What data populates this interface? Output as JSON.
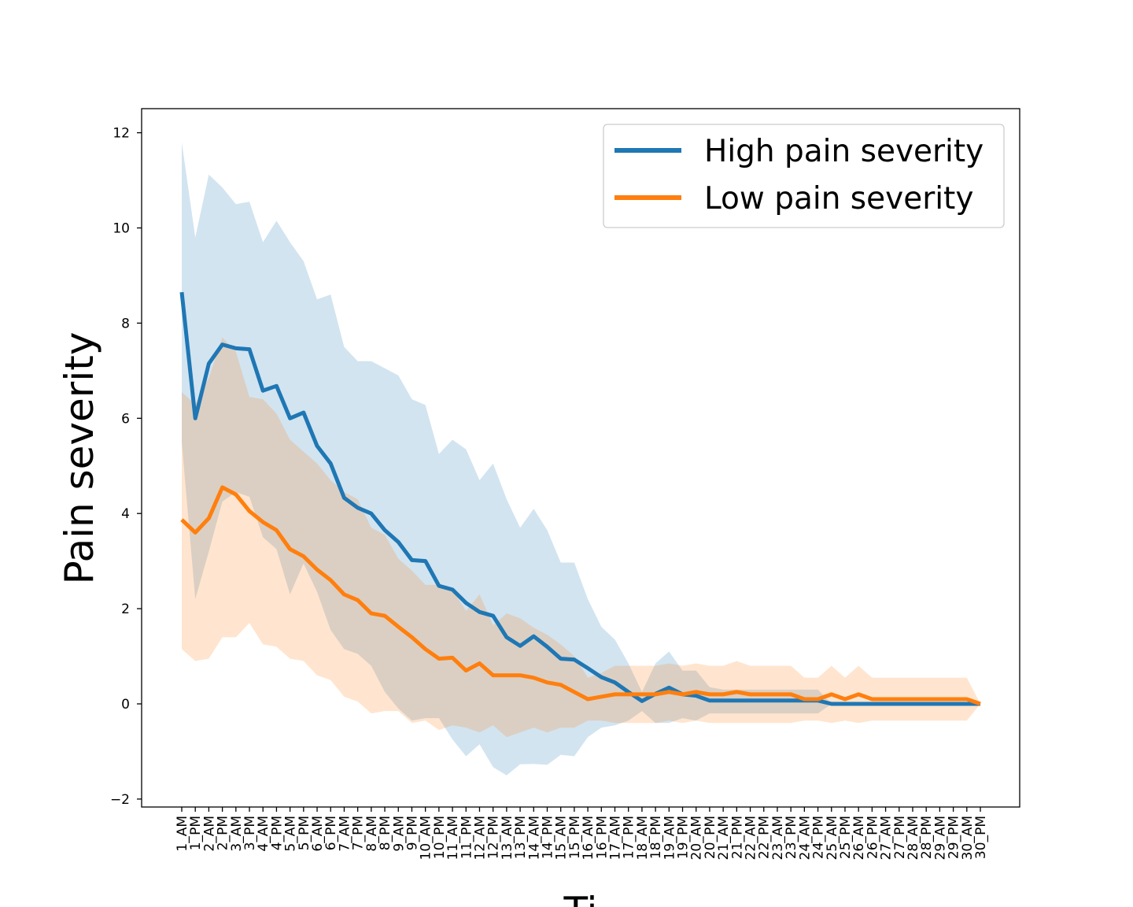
{
  "chart_data": {
    "type": "line",
    "title": "",
    "xlabel": "Ti",
    "ylabel": "Pain severity",
    "ylim": [
      -2.2,
      12.5
    ],
    "yticks": [
      -2,
      0,
      2,
      4,
      6,
      8,
      10,
      12
    ],
    "ytick_labels": [
      "−2",
      "0",
      "2",
      "4",
      "6",
      "8",
      "10",
      "12"
    ],
    "grid": false,
    "legend_position": "top-right",
    "categories": [
      "1_AM",
      "1_PM",
      "2_AM",
      "2_PM",
      "3_AM",
      "3_PM",
      "4_AM",
      "4_PM",
      "5_AM",
      "5_PM",
      "6_AM",
      "6_PM",
      "7_AM",
      "7_PM",
      "8_AM",
      "8_PM",
      "9_AM",
      "9_PM",
      "10_AM",
      "10_PM",
      "11_AM",
      "11_PM",
      "12_AM",
      "12_PM",
      "13_AM",
      "13_PM",
      "14_AM",
      "14_PM",
      "15_AM",
      "15_PM",
      "16_AM",
      "16_PM",
      "17_AM",
      "17_PM",
      "18_AM",
      "18_PM",
      "19_AM",
      "19_PM",
      "20_AM",
      "20_PM",
      "21_AM",
      "21_PM",
      "22_AM",
      "22_PM",
      "23_AM",
      "23_PM",
      "24_AM",
      "24_PM",
      "25_AM",
      "25_PM",
      "26_AM",
      "26_PM",
      "27_AM",
      "27_PM",
      "28_AM",
      "28_PM",
      "29_AM",
      "29_PM",
      "30_AM",
      "30_PM"
    ],
    "series": [
      {
        "name": "High pain severity",
        "color": "#1f77b4",
        "band_color": "#1f77b4",
        "values": [
          8.65,
          6.0,
          7.15,
          7.55,
          7.47,
          7.45,
          6.58,
          6.68,
          6.0,
          6.12,
          5.42,
          5.05,
          4.33,
          4.12,
          4.0,
          3.65,
          3.4,
          3.02,
          3.0,
          2.48,
          2.4,
          2.12,
          1.93,
          1.85,
          1.4,
          1.22,
          1.42,
          1.2,
          0.95,
          0.93,
          0.75,
          0.56,
          0.45,
          0.25,
          0.06,
          0.21,
          0.34,
          0.2,
          0.17,
          0.07,
          0.07,
          0.07,
          0.07,
          0.07,
          0.07,
          0.07,
          0.07,
          0.07,
          0.0,
          0.0,
          0.0,
          0.0,
          0.0,
          0.0,
          0.0,
          0.0,
          0.0,
          0.0,
          0.0,
          0.0
        ],
        "upper": [
          11.8,
          9.8,
          11.12,
          10.85,
          10.5,
          10.55,
          9.7,
          10.15,
          9.7,
          9.3,
          8.5,
          8.6,
          7.5,
          7.2,
          7.2,
          7.05,
          6.9,
          6.4,
          6.28,
          5.25,
          5.55,
          5.35,
          4.7,
          5.05,
          4.3,
          3.7,
          4.1,
          3.65,
          2.97,
          2.97,
          2.2,
          1.62,
          1.35,
          0.85,
          0.25,
          0.85,
          1.1,
          0.7,
          0.7,
          0.35,
          0.3,
          0.3,
          0.3,
          0.3,
          0.3,
          0.3,
          0.3,
          0.3,
          0.0,
          0.0,
          0.0,
          0.0,
          0.0,
          0.0,
          0.0,
          0.0,
          0.0,
          0.0,
          0.0,
          0.0
        ],
        "lower": [
          5.5,
          2.2,
          3.2,
          4.25,
          4.45,
          4.35,
          3.5,
          3.25,
          2.3,
          2.95,
          2.35,
          1.55,
          1.15,
          1.05,
          0.8,
          0.25,
          -0.1,
          -0.35,
          -0.3,
          -0.3,
          -0.75,
          -1.1,
          -0.85,
          -1.33,
          -1.5,
          -1.27,
          -1.26,
          -1.28,
          -1.07,
          -1.1,
          -0.7,
          -0.5,
          -0.45,
          -0.35,
          -0.15,
          -0.4,
          -0.4,
          -0.3,
          -0.35,
          -0.2,
          -0.2,
          -0.2,
          -0.2,
          -0.2,
          -0.2,
          -0.2,
          -0.2,
          -0.2,
          0.0,
          0.0,
          0.0,
          0.0,
          0.0,
          0.0,
          0.0,
          0.0,
          0.0,
          0.0,
          0.0,
          0.0
        ]
      },
      {
        "name": "Low pain severity",
        "color": "#ff7f0e",
        "band_color": "#ff7f0e",
        "values": [
          3.87,
          3.6,
          3.9,
          4.55,
          4.4,
          4.05,
          3.82,
          3.65,
          3.25,
          3.1,
          2.82,
          2.6,
          2.3,
          2.18,
          1.9,
          1.85,
          1.62,
          1.4,
          1.15,
          0.95,
          0.97,
          0.7,
          0.85,
          0.6,
          0.6,
          0.6,
          0.55,
          0.45,
          0.4,
          0.25,
          0.1,
          0.15,
          0.2,
          0.2,
          0.2,
          0.2,
          0.25,
          0.2,
          0.25,
          0.2,
          0.2,
          0.25,
          0.2,
          0.2,
          0.2,
          0.2,
          0.1,
          0.1,
          0.2,
          0.1,
          0.2,
          0.1,
          0.1,
          0.1,
          0.1,
          0.1,
          0.1,
          0.1,
          0.1,
          0.0
        ],
        "upper": [
          6.55,
          6.3,
          6.85,
          7.7,
          7.4,
          6.45,
          6.4,
          6.1,
          5.55,
          5.3,
          5.05,
          4.7,
          4.45,
          4.3,
          3.7,
          3.55,
          3.05,
          2.8,
          2.5,
          2.5,
          2.4,
          1.95,
          2.3,
          1.65,
          1.9,
          1.8,
          1.6,
          1.45,
          1.25,
          1.0,
          0.55,
          0.65,
          0.8,
          0.8,
          0.8,
          0.8,
          0.85,
          0.8,
          0.85,
          0.8,
          0.8,
          0.9,
          0.8,
          0.8,
          0.8,
          0.8,
          0.55,
          0.55,
          0.8,
          0.55,
          0.8,
          0.55,
          0.55,
          0.55,
          0.55,
          0.55,
          0.55,
          0.55,
          0.55,
          0.0
        ],
        "lower": [
          1.15,
          0.9,
          0.95,
          1.4,
          1.4,
          1.7,
          1.25,
          1.2,
          0.95,
          0.9,
          0.6,
          0.5,
          0.15,
          0.05,
          -0.2,
          -0.15,
          -0.15,
          -0.4,
          -0.35,
          -0.55,
          -0.45,
          -0.5,
          -0.6,
          -0.45,
          -0.7,
          -0.6,
          -0.5,
          -0.6,
          -0.5,
          -0.5,
          -0.35,
          -0.35,
          -0.4,
          -0.4,
          -0.4,
          -0.4,
          -0.35,
          -0.4,
          -0.35,
          -0.4,
          -0.4,
          -0.4,
          -0.4,
          -0.4,
          -0.4,
          -0.4,
          -0.35,
          -0.35,
          -0.4,
          -0.35,
          -0.4,
          -0.35,
          -0.35,
          -0.35,
          -0.35,
          -0.35,
          -0.35,
          -0.35,
          -0.35,
          0.0
        ]
      }
    ]
  }
}
